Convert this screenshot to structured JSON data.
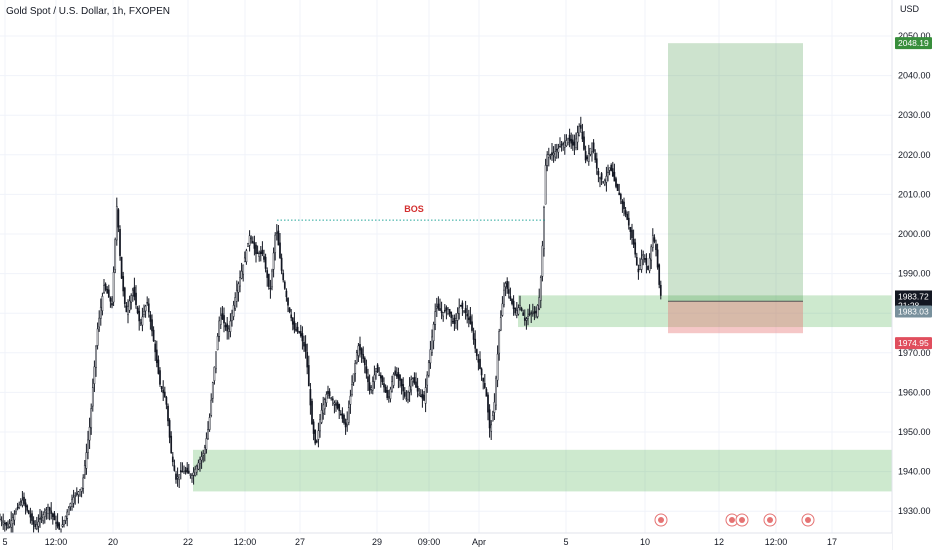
{
  "header": {
    "symbol_title": "Gold Spot / U.S. Dollar, 1h, FXOPEN",
    "currency": "USD"
  },
  "colors": {
    "candle": "#131722",
    "zone_green": "#4caf50",
    "target_green": "#388e3c",
    "stop_red": "#e57373",
    "stop_badge": "#e04e5d",
    "last_price_badge": "#131722",
    "bid_badge": "#78909c",
    "bos_text": "#d32f2f",
    "bos_line": "#26a69a",
    "grid": "#f0f3fa"
  },
  "chart_data": {
    "type": "candlestick",
    "timeframe": "1h",
    "y_axis": {
      "ticks": [
        1930,
        1940,
        1950,
        1960,
        1970,
        1980,
        1990,
        2000,
        2010,
        2020,
        2030,
        2040,
        2050
      ],
      "tick_labels": [
        "1930.00",
        "1940.00",
        "1950.00",
        "1960.00",
        "1970.00",
        "1980.00",
        "1990.00",
        "2000.00",
        "2010.00",
        "2020.00",
        "2030.00",
        "2040.00",
        "2050.00"
      ],
      "range": [
        1924,
        2058
      ]
    },
    "x_axis": {
      "tick_labels": [
        "5",
        "12:00",
        "20",
        "22",
        "12:00",
        "27",
        "29",
        "09:00",
        "Apr",
        "5",
        "10",
        "12",
        "12:00",
        "17"
      ]
    },
    "price_path": [
      [
        0,
        1928
      ],
      [
        8,
        1926
      ],
      [
        22,
        1933
      ],
      [
        35,
        1926
      ],
      [
        48,
        1931
      ],
      [
        60,
        1925
      ],
      [
        72,
        1933
      ],
      [
        82,
        1936
      ],
      [
        90,
        1952
      ],
      [
        97,
        1975
      ],
      [
        104,
        1987
      ],
      [
        112,
        1982
      ],
      [
        117,
        2008
      ],
      [
        121,
        1990
      ],
      [
        126,
        1980
      ],
      [
        133,
        1986
      ],
      [
        140,
        1977
      ],
      [
        147,
        1983
      ],
      [
        153,
        1974
      ],
      [
        160,
        1962
      ],
      [
        166,
        1958
      ],
      [
        171,
        1945
      ],
      [
        176,
        1938
      ],
      [
        181,
        1940
      ],
      [
        186,
        1940
      ],
      [
        192,
        1939
      ],
      [
        198,
        1942
      ],
      [
        204,
        1945
      ],
      [
        209,
        1952
      ],
      [
        213,
        1963
      ],
      [
        220,
        1980
      ],
      [
        228,
        1975
      ],
      [
        236,
        1985
      ],
      [
        244,
        1993
      ],
      [
        250,
        2000
      ],
      [
        256,
        1995
      ],
      [
        263,
        1995
      ],
      [
        270,
        1985
      ],
      [
        276,
        2002
      ],
      [
        282,
        1990
      ],
      [
        288,
        1982
      ],
      [
        294,
        1976
      ],
      [
        300,
        1975
      ],
      [
        306,
        1970
      ],
      [
        312,
        1952
      ],
      [
        316,
        1946
      ],
      [
        321,
        1955
      ],
      [
        327,
        1960
      ],
      [
        333,
        1958
      ],
      [
        340,
        1955
      ],
      [
        346,
        1951
      ],
      [
        352,
        1962
      ],
      [
        358,
        1972
      ],
      [
        364,
        1968
      ],
      [
        370,
        1960
      ],
      [
        376,
        1966
      ],
      [
        382,
        1963
      ],
      [
        388,
        1958
      ],
      [
        394,
        1965
      ],
      [
        400,
        1963
      ],
      [
        406,
        1958
      ],
      [
        412,
        1964
      ],
      [
        418,
        1960
      ],
      [
        424,
        1958
      ],
      [
        430,
        1970
      ],
      [
        436,
        1982
      ],
      [
        442,
        1980
      ],
      [
        448,
        1981
      ],
      [
        454,
        1977
      ],
      [
        460,
        1982
      ],
      [
        466,
        1980
      ],
      [
        471,
        1977
      ],
      [
        476,
        1970
      ],
      [
        481,
        1965
      ],
      [
        486,
        1960
      ],
      [
        490,
        1950
      ],
      [
        494,
        1956
      ],
      [
        499,
        1975
      ],
      [
        505,
        1988
      ],
      [
        510,
        1984
      ],
      [
        515,
        1980
      ],
      [
        520,
        1982
      ],
      [
        525,
        1978
      ],
      [
        530,
        1980
      ],
      [
        536,
        1980
      ],
      [
        540,
        1985
      ],
      [
        543,
        2000
      ],
      [
        546,
        2020
      ],
      [
        552,
        2020
      ],
      [
        560,
        2022
      ],
      [
        568,
        2024
      ],
      [
        574,
        2022
      ],
      [
        580,
        2028
      ],
      [
        586,
        2018
      ],
      [
        592,
        2023
      ],
      [
        598,
        2015
      ],
      [
        604,
        2013
      ],
      [
        610,
        2017
      ],
      [
        616,
        2012
      ],
      [
        622,
        2008
      ],
      [
        628,
        2003
      ],
      [
        634,
        1997
      ],
      [
        638,
        1990
      ],
      [
        643,
        1995
      ],
      [
        648,
        1991
      ],
      [
        653,
        2000
      ],
      [
        656,
        1996
      ],
      [
        660,
        1985
      ],
      [
        662,
        1983.72
      ]
    ],
    "annotations": {
      "bos": {
        "label": "BOS",
        "price": 2003.5
      },
      "demand_zone_upper": {
        "top": 1984.5,
        "bottom": 1976.5
      },
      "demand_zone_lower": {
        "top": 1945.5,
        "bottom": 1935
      },
      "long_position": {
        "entry": 1983.03,
        "target": 2048.19,
        "stop": 1974.95
      }
    },
    "price_labels": {
      "target": "2048.19",
      "last_price": "1983.72",
      "countdown": "21:28",
      "bid": "1983.03",
      "stop": "1974.95"
    },
    "event_markers": [
      "lightning-event",
      "us-flag-event",
      "us-flag-event",
      "us-flag-event",
      "us-flag-event"
    ],
    "grid": true
  }
}
